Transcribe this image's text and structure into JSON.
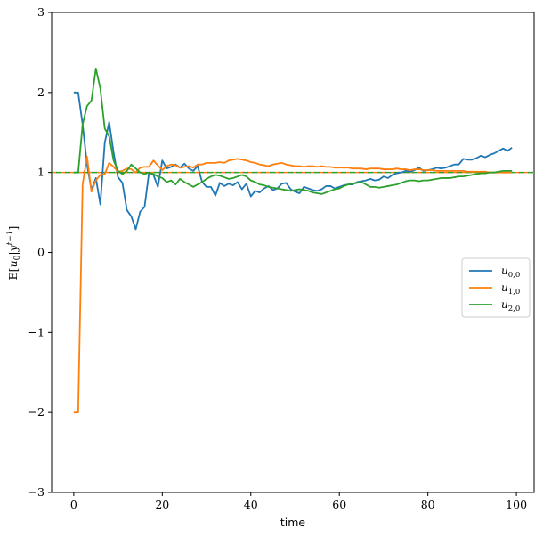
{
  "chart_data": {
    "type": "line",
    "xlabel": "time",
    "ylabel": "E[u0|y t−1]",
    "xlim": [
      -5,
      104
    ],
    "ylim": [
      -3,
      3
    ],
    "xticks": [
      0,
      20,
      40,
      60,
      80,
      100
    ],
    "yticks": [
      -3,
      -2,
      -1,
      0,
      1,
      2,
      3
    ],
    "xtick_labels": [
      "0",
      "20",
      "40",
      "60",
      "80",
      "100"
    ],
    "ytick_labels": [
      "−3",
      "−2",
      "−1",
      "0",
      "1",
      "2",
      "3"
    ],
    "grid": false,
    "legend_position": "center-right",
    "reference_line": {
      "y": 1.0,
      "style": "dashed",
      "colors": [
        "#ff7f0e",
        "#2ca02c"
      ]
    },
    "series": [
      {
        "name": "u0,0",
        "color": "#1f77b4",
        "values": [
          2.0,
          2.0,
          1.6,
          1.1,
          0.78,
          0.93,
          0.6,
          1.37,
          1.63,
          1.25,
          0.94,
          0.87,
          0.53,
          0.45,
          0.29,
          0.51,
          0.57,
          1.0,
          0.97,
          0.82,
          1.15,
          1.05,
          1.07,
          1.1,
          1.06,
          1.11,
          1.05,
          1.02,
          1.08,
          0.88,
          0.82,
          0.82,
          0.71,
          0.87,
          0.83,
          0.86,
          0.84,
          0.88,
          0.79,
          0.86,
          0.7,
          0.77,
          0.75,
          0.8,
          0.83,
          0.78,
          0.8,
          0.86,
          0.87,
          0.79,
          0.76,
          0.74,
          0.82,
          0.8,
          0.78,
          0.77,
          0.79,
          0.83,
          0.83,
          0.8,
          0.82,
          0.84,
          0.85,
          0.85,
          0.88,
          0.89,
          0.9,
          0.92,
          0.9,
          0.91,
          0.95,
          0.93,
          0.97,
          0.99,
          1.0,
          1.02,
          1.01,
          1.03,
          1.06,
          1.02,
          1.03,
          1.04,
          1.06,
          1.05,
          1.06,
          1.08,
          1.1,
          1.1,
          1.17,
          1.16,
          1.16,
          1.18,
          1.21,
          1.19,
          1.22,
          1.24,
          1.27,
          1.3,
          1.27,
          1.31
        ]
      },
      {
        "name": "u1,0",
        "color": "#ff7f0e",
        "values": [
          -2.0,
          -2.0,
          0.85,
          1.2,
          0.76,
          0.9,
          0.97,
          0.98,
          1.12,
          1.07,
          1.01,
          1.02,
          1.05,
          1.04,
          1.0,
          1.06,
          1.07,
          1.07,
          1.15,
          1.09,
          1.03,
          1.08,
          1.1,
          1.09,
          1.06,
          1.07,
          1.08,
          1.06,
          1.1,
          1.1,
          1.12,
          1.12,
          1.12,
          1.13,
          1.12,
          1.15,
          1.16,
          1.17,
          1.16,
          1.15,
          1.13,
          1.12,
          1.1,
          1.09,
          1.08,
          1.1,
          1.11,
          1.12,
          1.1,
          1.09,
          1.08,
          1.08,
          1.07,
          1.08,
          1.08,
          1.07,
          1.08,
          1.07,
          1.07,
          1.06,
          1.06,
          1.06,
          1.06,
          1.05,
          1.05,
          1.05,
          1.04,
          1.05,
          1.05,
          1.05,
          1.04,
          1.04,
          1.04,
          1.05,
          1.04,
          1.04,
          1.03,
          1.04,
          1.04,
          1.03,
          1.03,
          1.03,
          1.02,
          1.02,
          1.02,
          1.02,
          1.02,
          1.02,
          1.02,
          1.01,
          1.01,
          1.01,
          1.01,
          1.01,
          1.0,
          1.0,
          1.0,
          1.0,
          1.0,
          1.0
        ]
      },
      {
        "name": "u2,0",
        "color": "#2ca02c",
        "values": [
          1.0,
          1.0,
          1.6,
          1.83,
          1.9,
          2.3,
          2.05,
          1.55,
          1.45,
          1.15,
          1.02,
          0.98,
          1.02,
          1.1,
          1.05,
          1.0,
          0.98,
          1.0,
          0.98,
          0.95,
          0.93,
          0.88,
          0.9,
          0.85,
          0.92,
          0.88,
          0.85,
          0.82,
          0.85,
          0.88,
          0.92,
          0.95,
          0.97,
          0.96,
          0.94,
          0.92,
          0.93,
          0.95,
          0.97,
          0.95,
          0.9,
          0.88,
          0.85,
          0.84,
          0.82,
          0.81,
          0.8,
          0.79,
          0.78,
          0.77,
          0.78,
          0.79,
          0.78,
          0.77,
          0.75,
          0.74,
          0.73,
          0.75,
          0.77,
          0.79,
          0.8,
          0.83,
          0.85,
          0.86,
          0.87,
          0.88,
          0.85,
          0.82,
          0.82,
          0.81,
          0.82,
          0.83,
          0.84,
          0.85,
          0.87,
          0.89,
          0.9,
          0.9,
          0.89,
          0.9,
          0.9,
          0.91,
          0.92,
          0.93,
          0.93,
          0.93,
          0.94,
          0.95,
          0.95,
          0.96,
          0.97,
          0.98,
          0.99,
          0.99,
          1.0,
          1.0,
          1.01,
          1.02,
          1.02,
          1.02
        ]
      }
    ]
  }
}
